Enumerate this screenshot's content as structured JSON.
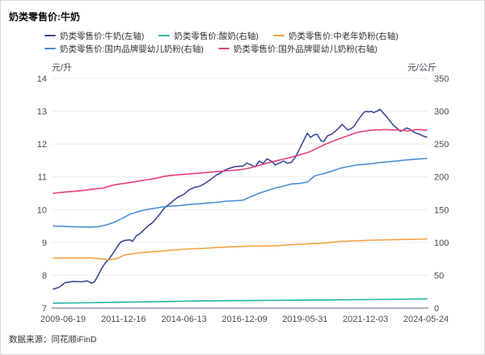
{
  "title": "奶类零售价:牛奶",
  "source": "数据来源：同花顺iFinD",
  "chart_data": {
    "type": "line",
    "title": "奶类零售价:牛奶",
    "grid": true,
    "legend_position": "top",
    "left_axis": {
      "unit": "元/升",
      "min": 7,
      "max": 14,
      "ticks": [
        14,
        13,
        12,
        11,
        10,
        9,
        8,
        7
      ]
    },
    "right_axis": {
      "unit": "元/公斤",
      "min": 0,
      "max": 350,
      "ticks": [
        350,
        300,
        250,
        200,
        150,
        100,
        50,
        0
      ]
    },
    "x_ticks": [
      "2009-06-19",
      "2011-12-16",
      "2014-06-13",
      "2016-12-09",
      "2019-05-31",
      "2021-12-03",
      "2024-05-24"
    ],
    "legend_rows": [
      [
        0,
        1,
        2
      ],
      [
        3,
        4
      ]
    ],
    "series": [
      {
        "name": "奶类零售价:牛奶(左轴)",
        "axis": "left",
        "color": "#3d4a99",
        "points": [
          [
            0.0,
            7.58
          ],
          [
            0.015,
            7.63
          ],
          [
            0.032,
            7.78
          ],
          [
            0.054,
            7.81
          ],
          [
            0.076,
            7.8
          ],
          [
            0.091,
            7.83
          ],
          [
            0.102,
            7.76
          ],
          [
            0.11,
            7.8
          ],
          [
            0.119,
            7.98
          ],
          [
            0.13,
            8.22
          ],
          [
            0.14,
            8.39
          ],
          [
            0.151,
            8.52
          ],
          [
            0.162,
            8.71
          ],
          [
            0.173,
            8.9
          ],
          [
            0.179,
            9.0
          ],
          [
            0.19,
            9.06
          ],
          [
            0.205,
            9.08
          ],
          [
            0.212,
            9.03
          ],
          [
            0.222,
            9.2
          ],
          [
            0.233,
            9.28
          ],
          [
            0.244,
            9.4
          ],
          [
            0.255,
            9.52
          ],
          [
            0.266,
            9.61
          ],
          [
            0.276,
            9.74
          ],
          [
            0.285,
            9.87
          ],
          [
            0.292,
            9.98
          ],
          [
            0.302,
            10.1
          ],
          [
            0.313,
            10.19
          ],
          [
            0.324,
            10.3
          ],
          [
            0.335,
            10.39
          ],
          [
            0.35,
            10.47
          ],
          [
            0.363,
            10.6
          ],
          [
            0.378,
            10.68
          ],
          [
            0.393,
            10.72
          ],
          [
            0.406,
            10.8
          ],
          [
            0.421,
            10.92
          ],
          [
            0.436,
            11.05
          ],
          [
            0.449,
            11.13
          ],
          [
            0.46,
            11.21
          ],
          [
            0.471,
            11.26
          ],
          [
            0.486,
            11.31
          ],
          [
            0.508,
            11.33
          ],
          [
            0.518,
            11.42
          ],
          [
            0.529,
            11.37
          ],
          [
            0.54,
            11.3
          ],
          [
            0.551,
            11.48
          ],
          [
            0.562,
            11.41
          ],
          [
            0.572,
            11.55
          ],
          [
            0.585,
            11.47
          ],
          [
            0.594,
            11.36
          ],
          [
            0.605,
            11.42
          ],
          [
            0.616,
            11.48
          ],
          [
            0.626,
            11.42
          ],
          [
            0.637,
            11.44
          ],
          [
            0.648,
            11.6
          ],
          [
            0.659,
            11.85
          ],
          [
            0.67,
            12.1
          ],
          [
            0.68,
            12.33
          ],
          [
            0.689,
            12.2
          ],
          [
            0.698,
            12.28
          ],
          [
            0.706,
            12.3
          ],
          [
            0.717,
            12.1
          ],
          [
            0.724,
            12.08
          ],
          [
            0.734,
            12.25
          ],
          [
            0.745,
            12.3
          ],
          [
            0.756,
            12.4
          ],
          [
            0.767,
            12.52
          ],
          [
            0.773,
            12.6
          ],
          [
            0.782,
            12.5
          ],
          [
            0.788,
            12.43
          ],
          [
            0.797,
            12.47
          ],
          [
            0.806,
            12.55
          ],
          [
            0.814,
            12.7
          ],
          [
            0.825,
            12.87
          ],
          [
            0.832,
            12.97
          ],
          [
            0.838,
            13.0
          ],
          [
            0.844,
            12.98
          ],
          [
            0.851,
            13.0
          ],
          [
            0.857,
            12.96
          ],
          [
            0.866,
            13.0
          ],
          [
            0.875,
            13.06
          ],
          [
            0.883,
            12.95
          ],
          [
            0.892,
            12.84
          ],
          [
            0.903,
            12.68
          ],
          [
            0.911,
            12.57
          ],
          [
            0.92,
            12.48
          ],
          [
            0.929,
            12.39
          ],
          [
            0.937,
            12.43
          ],
          [
            0.946,
            12.49
          ],
          [
            0.955,
            12.45
          ],
          [
            0.963,
            12.38
          ],
          [
            0.972,
            12.33
          ],
          [
            0.981,
            12.3
          ],
          [
            0.989,
            12.25
          ],
          [
            1.0,
            12.21
          ]
        ]
      },
      {
        "name": "奶类零售价:酸奶(右轴)",
        "axis": "right",
        "color": "#25b5a5",
        "points": [
          [
            0.0,
            7.5
          ],
          [
            0.076,
            8
          ],
          [
            0.184,
            9
          ],
          [
            0.292,
            10
          ],
          [
            0.4,
            11
          ],
          [
            0.508,
            11.5
          ],
          [
            0.616,
            12
          ],
          [
            0.724,
            12.5
          ],
          [
            0.832,
            13
          ],
          [
            0.939,
            13.5
          ],
          [
            1.0,
            14
          ]
        ]
      },
      {
        "name": "奶类零售价:中老年奶粉(右轴)",
        "axis": "right",
        "color": "#f6a344",
        "points": [
          [
            0.0,
            76
          ],
          [
            0.054,
            76.5
          ],
          [
            0.097,
            76.5
          ],
          [
            0.13,
            75
          ],
          [
            0.151,
            73.5
          ],
          [
            0.173,
            76
          ],
          [
            0.19,
            81
          ],
          [
            0.227,
            84
          ],
          [
            0.27,
            86
          ],
          [
            0.313,
            88
          ],
          [
            0.356,
            90
          ],
          [
            0.4,
            91
          ],
          [
            0.443,
            92.5
          ],
          [
            0.486,
            93.5
          ],
          [
            0.508,
            94
          ],
          [
            0.551,
            94.5
          ],
          [
            0.594,
            95
          ],
          [
            0.637,
            96.5
          ],
          [
            0.68,
            98
          ],
          [
            0.724,
            99
          ],
          [
            0.767,
            101.5
          ],
          [
            0.81,
            102.5
          ],
          [
            0.853,
            103.5
          ],
          [
            0.896,
            104
          ],
          [
            0.939,
            104.5
          ],
          [
            0.972,
            105
          ],
          [
            1.0,
            105.5
          ]
        ]
      },
      {
        "name": "奶类零售价:国内品牌婴幼儿奶粉(右轴)",
        "axis": "right",
        "color": "#4a8fd6",
        "points": [
          [
            0.0,
            125
          ],
          [
            0.054,
            124
          ],
          [
            0.097,
            123.5
          ],
          [
            0.119,
            124
          ],
          [
            0.14,
            126.5
          ],
          [
            0.162,
            130.5
          ],
          [
            0.184,
            136.5
          ],
          [
            0.205,
            143
          ],
          [
            0.227,
            147
          ],
          [
            0.248,
            150
          ],
          [
            0.27,
            152
          ],
          [
            0.292,
            154
          ],
          [
            0.313,
            155.5
          ],
          [
            0.335,
            156
          ],
          [
            0.356,
            157.5
          ],
          [
            0.378,
            158.5
          ],
          [
            0.4,
            159.5
          ],
          [
            0.421,
            160.5
          ],
          [
            0.443,
            161.5
          ],
          [
            0.464,
            163
          ],
          [
            0.486,
            163.5
          ],
          [
            0.508,
            164.5
          ],
          [
            0.529,
            170
          ],
          [
            0.551,
            175
          ],
          [
            0.572,
            179
          ],
          [
            0.594,
            183
          ],
          [
            0.616,
            186
          ],
          [
            0.637,
            189
          ],
          [
            0.659,
            190
          ],
          [
            0.67,
            191
          ],
          [
            0.68,
            192
          ],
          [
            0.691,
            197.5
          ],
          [
            0.702,
            202
          ],
          [
            0.713,
            203.5
          ],
          [
            0.724,
            205
          ],
          [
            0.745,
            208.5
          ],
          [
            0.767,
            213
          ],
          [
            0.788,
            215.5
          ],
          [
            0.81,
            218
          ],
          [
            0.832,
            219
          ],
          [
            0.853,
            220
          ],
          [
            0.875,
            222
          ],
          [
            0.896,
            223
          ],
          [
            0.918,
            224
          ],
          [
            0.939,
            225.5
          ],
          [
            0.961,
            226.5
          ],
          [
            0.983,
            227.5
          ],
          [
            1.0,
            228
          ]
        ]
      },
      {
        "name": "奶类零售价:国外品牌婴幼儿奶粉(右轴)",
        "axis": "right",
        "color": "#e4407f",
        "points": [
          [
            0.0,
            175
          ],
          [
            0.032,
            177
          ],
          [
            0.076,
            179
          ],
          [
            0.104,
            181
          ],
          [
            0.134,
            183
          ],
          [
            0.156,
            187
          ],
          [
            0.177,
            189
          ],
          [
            0.19,
            190
          ],
          [
            0.212,
            192
          ],
          [
            0.233,
            194
          ],
          [
            0.255,
            196
          ],
          [
            0.276,
            198
          ],
          [
            0.298,
            201
          ],
          [
            0.32,
            202.5
          ],
          [
            0.341,
            203.5
          ],
          [
            0.363,
            204.5
          ],
          [
            0.384,
            205.5
          ],
          [
            0.406,
            206.5
          ],
          [
            0.428,
            207.5
          ],
          [
            0.449,
            208.5
          ],
          [
            0.471,
            209.5
          ],
          [
            0.492,
            210.5
          ],
          [
            0.508,
            211.5
          ],
          [
            0.529,
            214
          ],
          [
            0.551,
            217.5
          ],
          [
            0.572,
            221
          ],
          [
            0.594,
            224
          ],
          [
            0.616,
            227
          ],
          [
            0.637,
            230
          ],
          [
            0.659,
            233.5
          ],
          [
            0.68,
            237
          ],
          [
            0.691,
            239.5
          ],
          [
            0.702,
            242.5
          ],
          [
            0.713,
            245.5
          ],
          [
            0.724,
            248.5
          ],
          [
            0.734,
            251
          ],
          [
            0.745,
            253.5
          ],
          [
            0.756,
            256
          ],
          [
            0.767,
            258.5
          ],
          [
            0.778,
            260.5
          ],
          [
            0.788,
            262.5
          ],
          [
            0.799,
            265
          ],
          [
            0.81,
            267
          ],
          [
            0.821,
            268.5
          ],
          [
            0.832,
            269.5
          ],
          [
            0.842,
            270.5
          ],
          [
            0.853,
            271
          ],
          [
            0.864,
            271.5
          ],
          [
            0.875,
            271.5
          ],
          [
            0.885,
            272
          ],
          [
            0.896,
            272
          ],
          [
            0.907,
            271.5
          ],
          [
            0.918,
            271.5
          ],
          [
            0.929,
            271
          ],
          [
            0.939,
            270.5
          ],
          [
            0.95,
            270
          ],
          [
            0.961,
            271
          ],
          [
            0.972,
            272
          ],
          [
            0.983,
            272
          ],
          [
            1.0,
            271
          ]
        ]
      }
    ],
    "colors": {
      "grid": "#ebebf3",
      "axis_line": "#9595a8",
      "axis_text": "#4a4a58"
    }
  }
}
